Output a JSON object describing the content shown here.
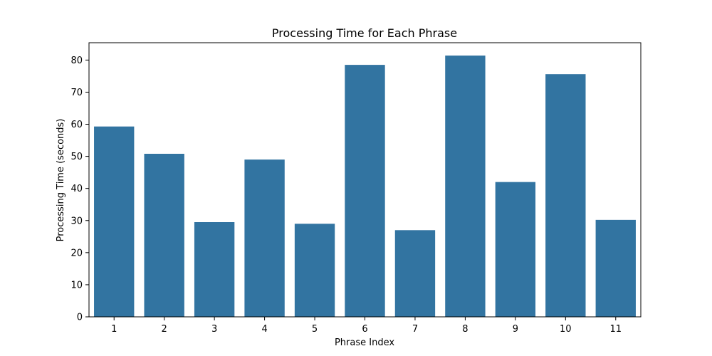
{
  "chart_data": {
    "type": "bar",
    "title": "Processing Time for Each Phrase",
    "xlabel": "Phrase Index",
    "ylabel": "Processing Time (seconds)",
    "categories": [
      "1",
      "2",
      "3",
      "4",
      "5",
      "6",
      "7",
      "8",
      "9",
      "10",
      "11"
    ],
    "values": [
      59.3,
      50.8,
      29.5,
      49.0,
      29.0,
      78.5,
      27.0,
      81.4,
      42.0,
      75.6,
      30.2
    ],
    "yticks": [
      0,
      10,
      20,
      30,
      40,
      50,
      60,
      70,
      80
    ],
    "ylim": [
      0,
      85.4
    ],
    "bar_color": "#3274a1",
    "grid": false,
    "legend": "none"
  }
}
